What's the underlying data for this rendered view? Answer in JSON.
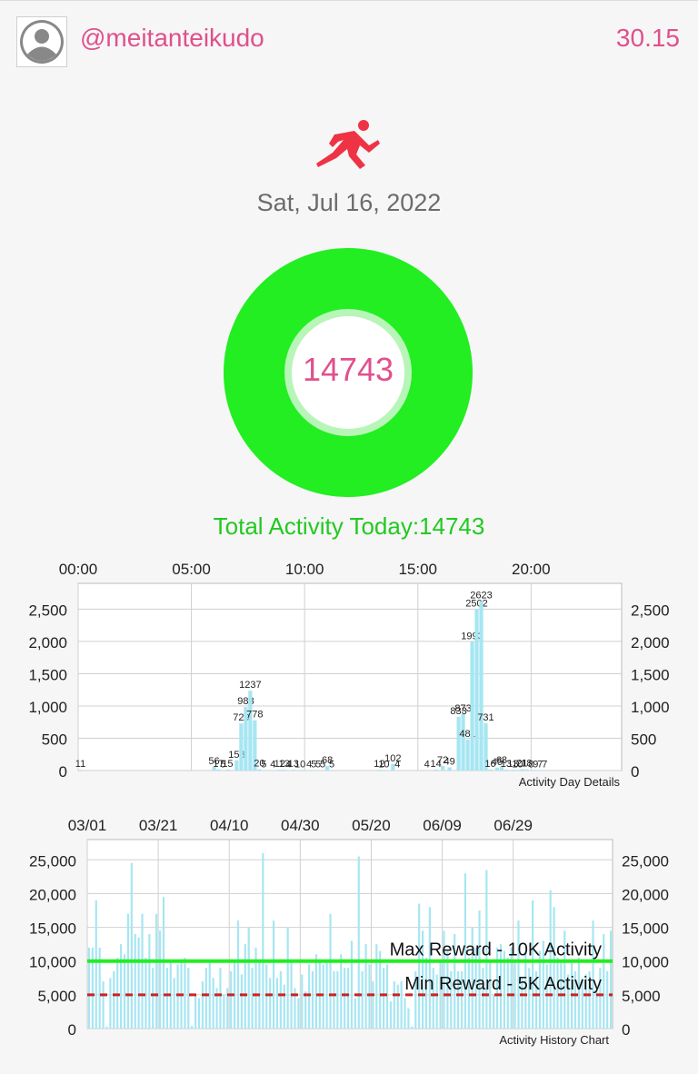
{
  "header": {
    "username": "@meitanteikudo",
    "balance": "30.15",
    "avatar_icon": "user-avatar-icon"
  },
  "activity_icon": "running-person-icon",
  "date": "Sat, Jul 16, 2022",
  "ring": {
    "value": "14743",
    "color": "#22ee22"
  },
  "total_label": "Total Activity Today:14743",
  "colors": {
    "accent": "#e0508c",
    "green": "#22ee22",
    "bar": "#a6e6f2",
    "min_line": "#cc2222"
  },
  "chart_data": [
    {
      "type": "bar",
      "title": "Activity Day Details",
      "x_tick_labels": [
        "00:00",
        "05:00",
        "10:00",
        "15:00",
        "20:00"
      ],
      "x_ticks_hour": [
        0,
        5,
        10,
        15,
        20
      ],
      "xlim_hours": [
        0,
        24
      ],
      "ylim": [
        0,
        2900
      ],
      "y_tick_values": [
        0,
        500,
        1000,
        1500,
        2000,
        2500
      ],
      "y_tick_labels": [
        "0",
        "500",
        "1,000",
        "1,500",
        "2,000",
        "2,500"
      ],
      "x_hours": [
        0.1,
        6.0,
        6.2,
        6.4,
        6.6,
        7.0,
        7.2,
        7.4,
        7.6,
        7.8,
        8.0,
        8.2,
        8.6,
        8.9,
        9.1,
        9.3,
        9.5,
        9.8,
        10.2,
        10.4,
        10.6,
        10.8,
        11.0,
        11.2,
        13.3,
        13.5,
        13.9,
        14.1,
        15.4,
        15.8,
        16.1,
        16.4,
        16.8,
        17.0,
        17.2,
        17.4,
        17.6,
        17.8,
        18.0,
        18.2,
        18.5,
        18.7,
        18.9,
        19.2,
        19.4,
        19.6,
        19.8,
        20.0,
        20.2,
        20.4,
        20.6
      ],
      "values": [
        11,
        56,
        17,
        5,
        15,
        158,
        729,
        983,
        1237,
        778,
        20,
        5,
        4,
        12,
        13,
        4,
        13,
        10,
        4,
        5,
        5,
        5,
        68,
        5,
        12,
        10,
        102,
        4,
        4,
        14,
        72,
        49,
        833,
        873,
        481,
        1993,
        2502,
        2623,
        731,
        16,
        45,
        68,
        13,
        13,
        10,
        21,
        18,
        8,
        9,
        7,
        7
      ],
      "labels": [
        "11",
        "56",
        "17",
        "5",
        "15",
        "158",
        "729",
        "983",
        "1237",
        "778",
        "20",
        "5",
        "4",
        "12",
        "13",
        "4",
        "13",
        "10",
        "4",
        "5",
        "5",
        "5",
        "68",
        "5",
        "12",
        "10",
        "102",
        "4",
        "4",
        "14",
        "72",
        "49",
        "833",
        "873",
        "481",
        "1993",
        "2502",
        "2623",
        "731",
        "16",
        "45",
        "68",
        "13",
        "13",
        "10",
        "21",
        "18",
        "8",
        "9",
        "7",
        "7"
      ]
    },
    {
      "type": "bar",
      "title": "Activity History Chart",
      "x_tick_labels": [
        "03/01",
        "03/21",
        "04/10",
        "04/30",
        "05/20",
        "06/09",
        "06/29"
      ],
      "x_tick_index": [
        0,
        20,
        40,
        60,
        80,
        100,
        120
      ],
      "ylim": [
        0,
        28000
      ],
      "y_tick_values": [
        0,
        5000,
        10000,
        15000,
        20000,
        25000
      ],
      "y_tick_labels": [
        "0",
        "5,000",
        "10,000",
        "15,000",
        "20,000",
        "25,000"
      ],
      "values": [
        12000,
        12000,
        19000,
        12000,
        7000,
        300,
        7500,
        8500,
        10500,
        12500,
        11000,
        17000,
        24500,
        14000,
        13500,
        17000,
        10500,
        14000,
        9000,
        17000,
        14500,
        19500,
        9000,
        10000,
        7500,
        9500,
        10000,
        10500,
        9000,
        400,
        5000,
        4500,
        7000,
        9000,
        10000,
        7500,
        6000,
        9000,
        5000,
        6000,
        8500,
        10000,
        16000,
        8000,
        12500,
        15000,
        9000,
        12000,
        10000,
        26000,
        9500,
        7500,
        16000,
        7500,
        8500,
        6500,
        15000,
        10000,
        6000,
        4500,
        8000,
        5500,
        9500,
        8500,
        11000,
        10000,
        9500,
        10000,
        17000,
        8500,
        8500,
        11000,
        9000,
        9000,
        13000,
        4500,
        25500,
        8500,
        12500,
        9500,
        7000,
        12500,
        11500,
        9000,
        9500,
        4000,
        7000,
        6500,
        7000,
        4500,
        3000,
        300,
        8500,
        18500,
        14500,
        10500,
        18000,
        9000,
        8000,
        10000,
        14500,
        11500,
        8500,
        14000,
        8500,
        8500,
        23000,
        10500,
        15000,
        12000,
        17500,
        9000,
        23500,
        10000,
        5000,
        12000,
        12500,
        11500,
        10500,
        12000,
        10000,
        16000,
        7500,
        11500,
        9000,
        19000,
        8500,
        11500,
        13000,
        9500,
        20500,
        18000,
        10500,
        10000,
        14500,
        8000,
        10000,
        8500,
        10500,
        7500,
        8000,
        8500,
        16000,
        6000,
        9000,
        14000,
        8500,
        14500
      ],
      "lines": [
        {
          "label": "Max Reward - 10K Activity",
          "value": 10000
        },
        {
          "label": "Min Reward - 5K Activity",
          "value": 5000
        }
      ]
    }
  ]
}
